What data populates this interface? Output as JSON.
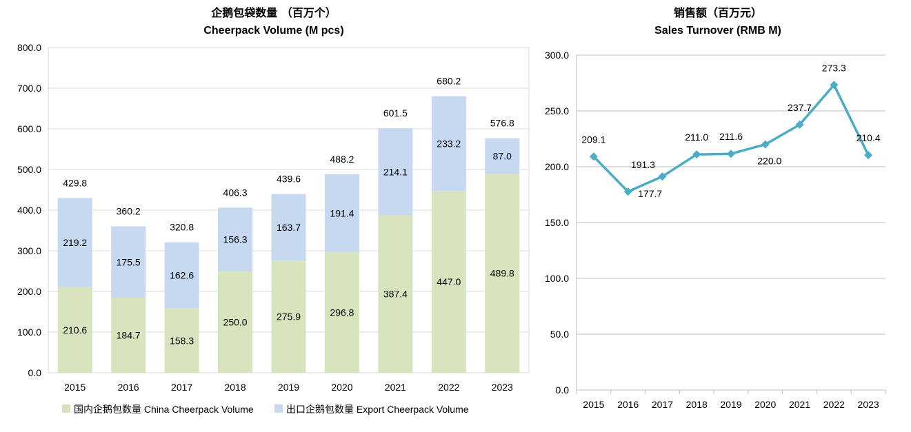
{
  "chart_data": [
    {
      "type": "bar",
      "stacked": true,
      "title": "企鹅包袋数量 （百万个）",
      "subtitle": "Cheerpack Volume (M pcs)",
      "categories": [
        "2015",
        "2016",
        "2017",
        "2018",
        "2019",
        "2020",
        "2021",
        "2022",
        "2023"
      ],
      "series": [
        {
          "name": "国内企鹅包数量 China Cheerpack Volume",
          "color": "#d7e4bd",
          "values": [
            210.6,
            184.7,
            158.3,
            250.0,
            275.9,
            296.8,
            387.4,
            447.0,
            489.8
          ]
        },
        {
          "name": "出口企鹅包数量 Export Cheerpack Volume",
          "color": "#c6d9f1",
          "values": [
            219.2,
            175.5,
            162.6,
            156.3,
            163.7,
            191.4,
            214.1,
            233.2,
            87.0
          ]
        }
      ],
      "totals": [
        429.8,
        360.2,
        320.8,
        406.3,
        439.6,
        488.2,
        601.5,
        680.2,
        576.8
      ],
      "ylim": [
        0,
        800
      ],
      "yticks": [
        "0.0",
        "100.0",
        "200.0",
        "300.0",
        "400.0",
        "500.0",
        "600.0",
        "700.0",
        "800.0"
      ],
      "grid": true,
      "legend": "bottom"
    },
    {
      "type": "line",
      "title": "销售额（百万元）",
      "subtitle": "Sales Turnover (RMB M)",
      "x": [
        "2015",
        "2016",
        "2017",
        "2018",
        "2019",
        "2020",
        "2021",
        "2022",
        "2023"
      ],
      "series": [
        {
          "color": "#4bacc6",
          "values": [
            209.1,
            177.7,
            191.3,
            211.0,
            211.6,
            220.0,
            237.7,
            273.3,
            210.4
          ]
        }
      ],
      "ylim": [
        0,
        300
      ],
      "yticks": [
        "0.0",
        "50.0",
        "100.0",
        "150.0",
        "200.0",
        "250.0",
        "300.0"
      ],
      "grid": true
    }
  ]
}
